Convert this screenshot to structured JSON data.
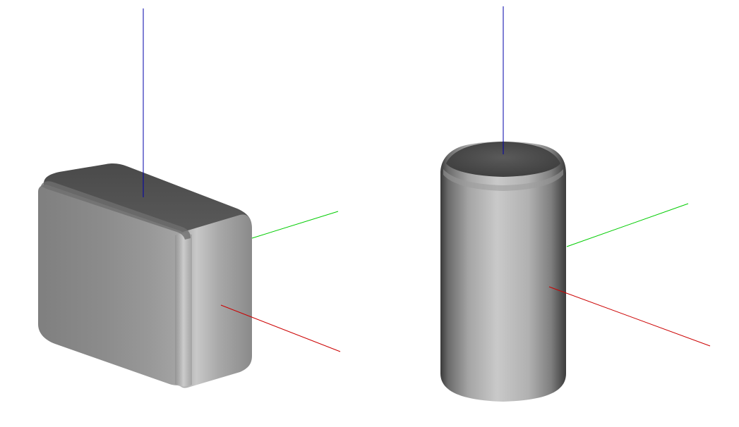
{
  "scene": {
    "background": "#ffffff",
    "axes": {
      "x_color": "#cc0000",
      "y_color": "#00cc00",
      "z_color": "#0000aa"
    },
    "objects": [
      {
        "name": "rounded-box",
        "shape": "rounded box",
        "color": "#8a8a8a"
      },
      {
        "name": "capsule-cylinder",
        "shape": "rounded cylinder",
        "color": "#9a9a9a"
      }
    ]
  }
}
